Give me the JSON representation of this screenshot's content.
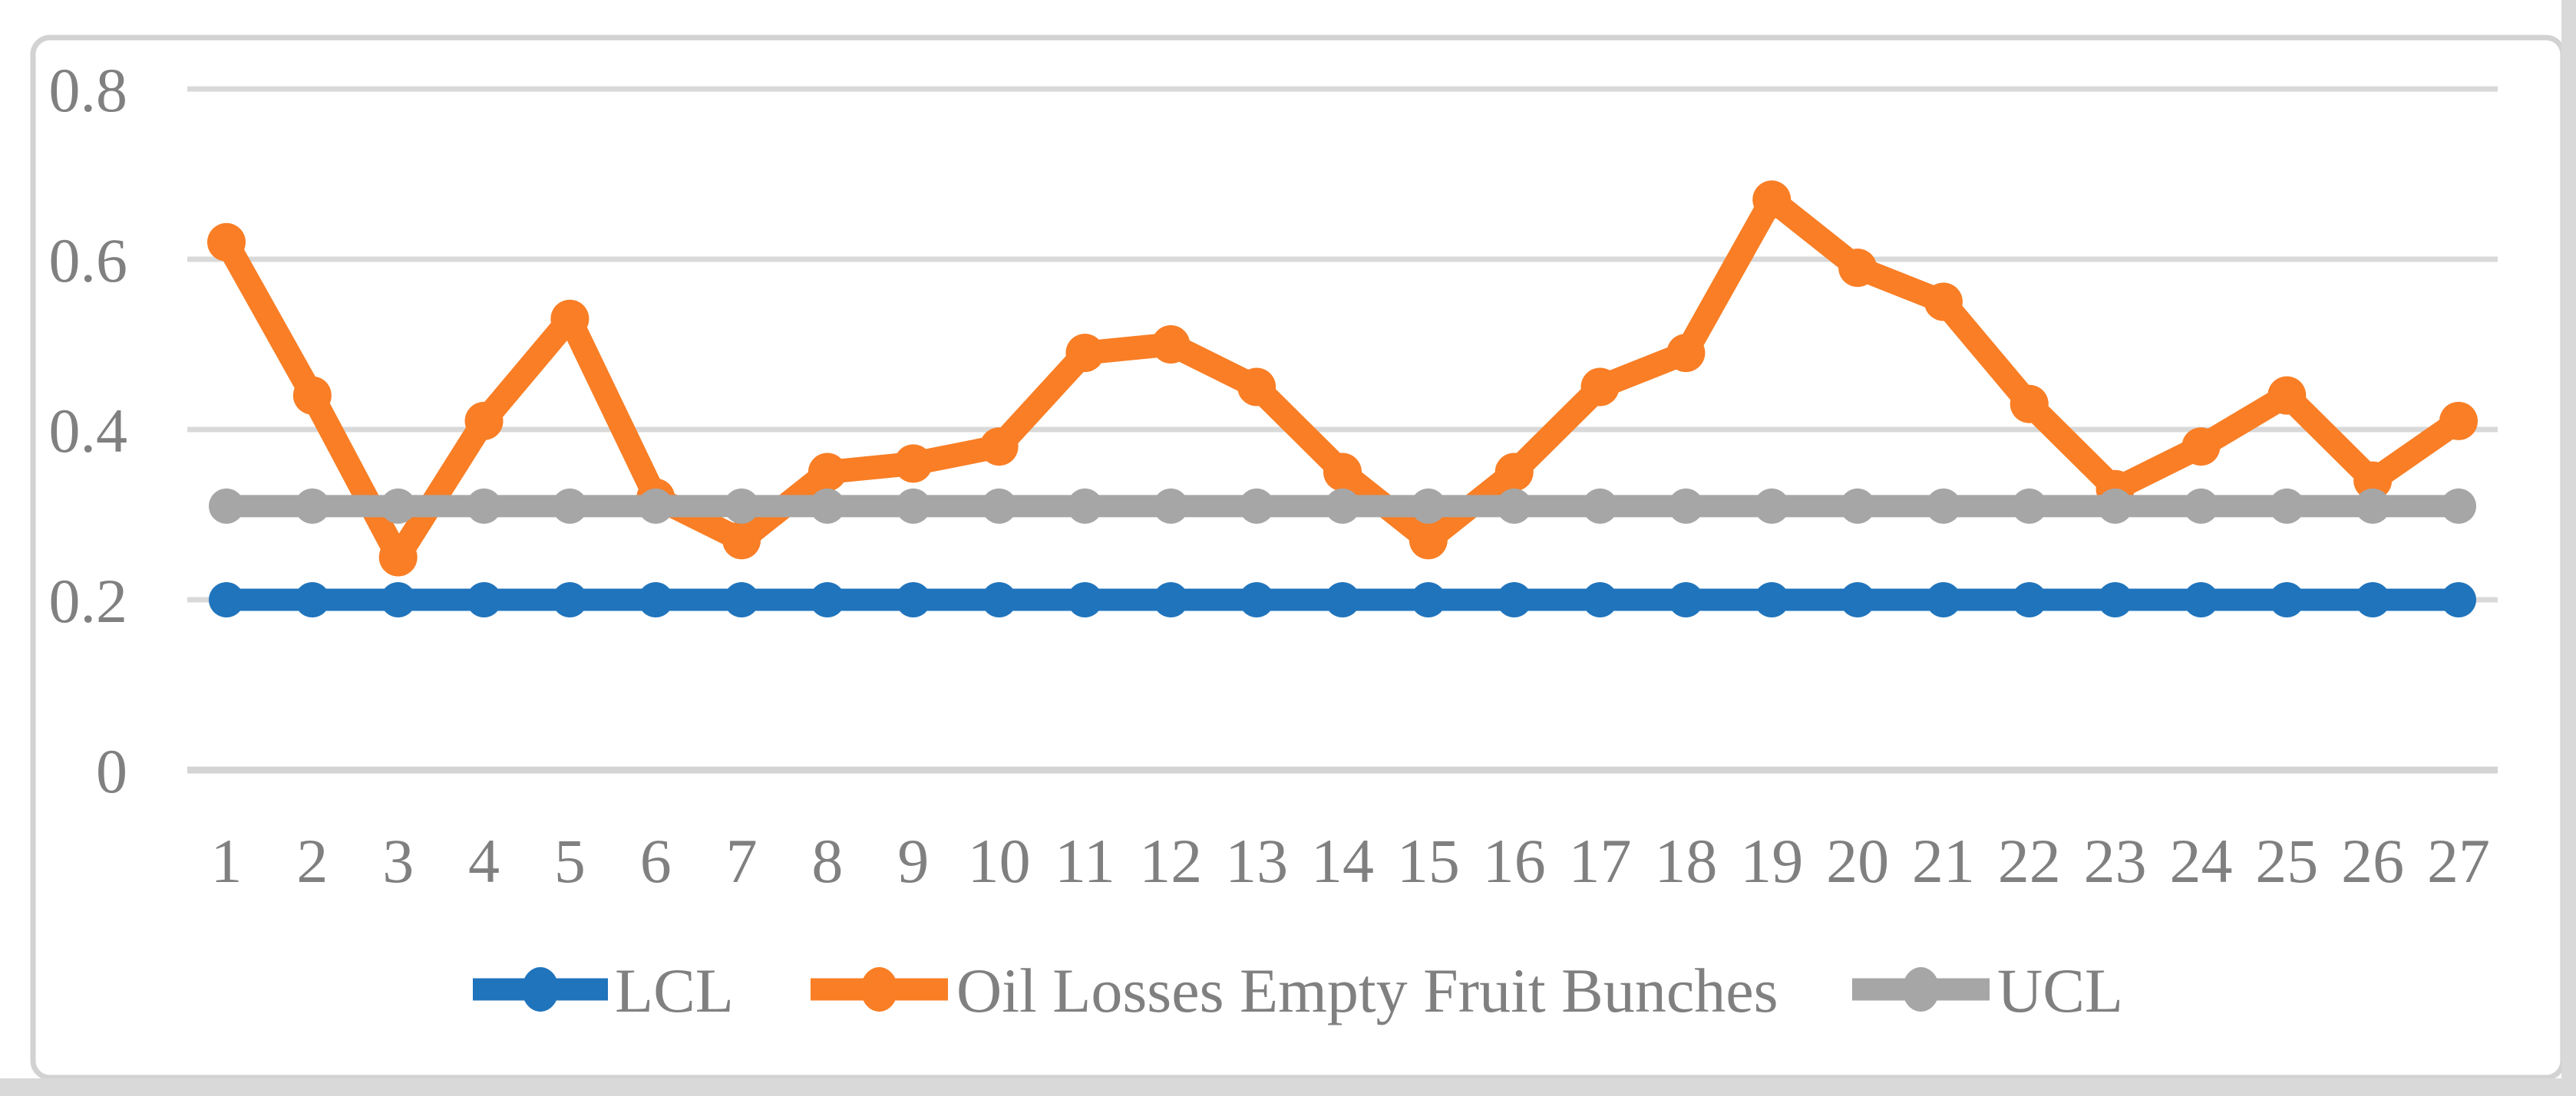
{
  "chart_data": {
    "type": "line",
    "title": "",
    "xlabel": "",
    "ylabel": "",
    "categories": [
      "1",
      "2",
      "3",
      "4",
      "5",
      "6",
      "7",
      "8",
      "9",
      "10",
      "11",
      "12",
      "13",
      "14",
      "15",
      "16",
      "17",
      "18",
      "19",
      "20",
      "21",
      "22",
      "23",
      "24",
      "25",
      "26",
      "27"
    ],
    "series": [
      {
        "name": "LCL",
        "color": "#2074BC",
        "marker": "circle",
        "values": [
          0.2,
          0.2,
          0.2,
          0.2,
          0.2,
          0.2,
          0.2,
          0.2,
          0.2,
          0.2,
          0.2,
          0.2,
          0.2,
          0.2,
          0.2,
          0.2,
          0.2,
          0.2,
          0.2,
          0.2,
          0.2,
          0.2,
          0.2,
          0.2,
          0.2,
          0.2,
          0.2
        ]
      },
      {
        "name": "Oil Losses Empty Fruit Bunches",
        "color": "#F97E25",
        "marker": "circle",
        "values": [
          0.62,
          0.44,
          0.25,
          0.41,
          0.53,
          0.32,
          0.27,
          0.35,
          0.36,
          0.38,
          0.49,
          0.5,
          0.45,
          0.35,
          0.27,
          0.35,
          0.45,
          0.49,
          0.67,
          0.59,
          0.55,
          0.43,
          0.33,
          0.38,
          0.44,
          0.34,
          0.41
        ]
      },
      {
        "name": "UCL",
        "color": "#A6A6A6",
        "marker": "circle",
        "values": [
          0.31,
          0.31,
          0.31,
          0.31,
          0.31,
          0.31,
          0.31,
          0.31,
          0.31,
          0.31,
          0.31,
          0.31,
          0.31,
          0.31,
          0.31,
          0.31,
          0.31,
          0.31,
          0.31,
          0.31,
          0.31,
          0.31,
          0.31,
          0.31,
          0.31,
          0.31,
          0.31
        ]
      }
    ],
    "ylim": [
      0,
      0.8
    ],
    "yticks": [
      {
        "value": 0,
        "label": "0"
      },
      {
        "value": 0.2,
        "label": "0.2"
      },
      {
        "value": 0.4,
        "label": "0.4"
      },
      {
        "value": 0.6,
        "label": "0.6"
      },
      {
        "value": 0.8,
        "label": "0.8"
      }
    ],
    "grid": "horizontal",
    "legend_position": "bottom"
  },
  "styles": {
    "background": "#FFFFFF",
    "gridline_color": "#D9D9D9",
    "axis_line_color": "#D4D4D4",
    "tick_label_color": "#808080",
    "legend_text_color": "#808080",
    "frame_border_color": "#D2D2D2",
    "edge_band_color": "#D9D9D9"
  }
}
